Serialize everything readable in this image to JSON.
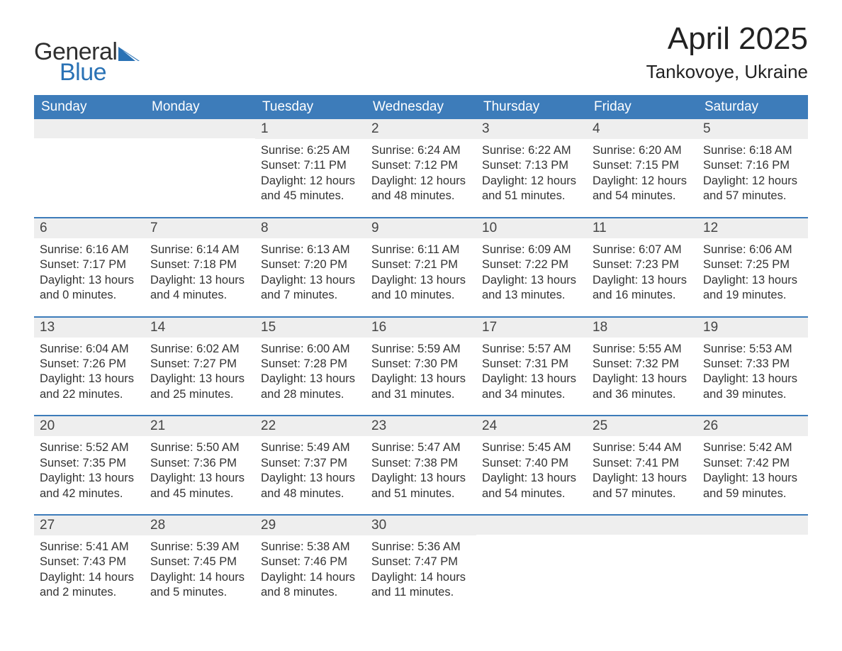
{
  "brand": {
    "text_general": "General",
    "text_blue": "Blue",
    "logo_fill": "#2a72b5"
  },
  "title": {
    "month": "April 2025",
    "location": "Tankovoye, Ukraine"
  },
  "colors": {
    "header_bg": "#3d7cba",
    "header_text": "#ffffff",
    "daynum_bg": "#eeeeee",
    "body_text": "#333333",
    "page_bg": "#ffffff",
    "rule": "#3d7cba"
  },
  "weekdays": [
    "Sunday",
    "Monday",
    "Tuesday",
    "Wednesday",
    "Thursday",
    "Friday",
    "Saturday"
  ],
  "weeks": [
    [
      null,
      null,
      {
        "n": "1",
        "sunrise": "Sunrise: 6:25 AM",
        "sunset": "Sunset: 7:11 PM",
        "daylight": "Daylight: 12 hours and 45 minutes."
      },
      {
        "n": "2",
        "sunrise": "Sunrise: 6:24 AM",
        "sunset": "Sunset: 7:12 PM",
        "daylight": "Daylight: 12 hours and 48 minutes."
      },
      {
        "n": "3",
        "sunrise": "Sunrise: 6:22 AM",
        "sunset": "Sunset: 7:13 PM",
        "daylight": "Daylight: 12 hours and 51 minutes."
      },
      {
        "n": "4",
        "sunrise": "Sunrise: 6:20 AM",
        "sunset": "Sunset: 7:15 PM",
        "daylight": "Daylight: 12 hours and 54 minutes."
      },
      {
        "n": "5",
        "sunrise": "Sunrise: 6:18 AM",
        "sunset": "Sunset: 7:16 PM",
        "daylight": "Daylight: 12 hours and 57 minutes."
      }
    ],
    [
      {
        "n": "6",
        "sunrise": "Sunrise: 6:16 AM",
        "sunset": "Sunset: 7:17 PM",
        "daylight": "Daylight: 13 hours and 0 minutes."
      },
      {
        "n": "7",
        "sunrise": "Sunrise: 6:14 AM",
        "sunset": "Sunset: 7:18 PM",
        "daylight": "Daylight: 13 hours and 4 minutes."
      },
      {
        "n": "8",
        "sunrise": "Sunrise: 6:13 AM",
        "sunset": "Sunset: 7:20 PM",
        "daylight": "Daylight: 13 hours and 7 minutes."
      },
      {
        "n": "9",
        "sunrise": "Sunrise: 6:11 AM",
        "sunset": "Sunset: 7:21 PM",
        "daylight": "Daylight: 13 hours and 10 minutes."
      },
      {
        "n": "10",
        "sunrise": "Sunrise: 6:09 AM",
        "sunset": "Sunset: 7:22 PM",
        "daylight": "Daylight: 13 hours and 13 minutes."
      },
      {
        "n": "11",
        "sunrise": "Sunrise: 6:07 AM",
        "sunset": "Sunset: 7:23 PM",
        "daylight": "Daylight: 13 hours and 16 minutes."
      },
      {
        "n": "12",
        "sunrise": "Sunrise: 6:06 AM",
        "sunset": "Sunset: 7:25 PM",
        "daylight": "Daylight: 13 hours and 19 minutes."
      }
    ],
    [
      {
        "n": "13",
        "sunrise": "Sunrise: 6:04 AM",
        "sunset": "Sunset: 7:26 PM",
        "daylight": "Daylight: 13 hours and 22 minutes."
      },
      {
        "n": "14",
        "sunrise": "Sunrise: 6:02 AM",
        "sunset": "Sunset: 7:27 PM",
        "daylight": "Daylight: 13 hours and 25 minutes."
      },
      {
        "n": "15",
        "sunrise": "Sunrise: 6:00 AM",
        "sunset": "Sunset: 7:28 PM",
        "daylight": "Daylight: 13 hours and 28 minutes."
      },
      {
        "n": "16",
        "sunrise": "Sunrise: 5:59 AM",
        "sunset": "Sunset: 7:30 PM",
        "daylight": "Daylight: 13 hours and 31 minutes."
      },
      {
        "n": "17",
        "sunrise": "Sunrise: 5:57 AM",
        "sunset": "Sunset: 7:31 PM",
        "daylight": "Daylight: 13 hours and 34 minutes."
      },
      {
        "n": "18",
        "sunrise": "Sunrise: 5:55 AM",
        "sunset": "Sunset: 7:32 PM",
        "daylight": "Daylight: 13 hours and 36 minutes."
      },
      {
        "n": "19",
        "sunrise": "Sunrise: 5:53 AM",
        "sunset": "Sunset: 7:33 PM",
        "daylight": "Daylight: 13 hours and 39 minutes."
      }
    ],
    [
      {
        "n": "20",
        "sunrise": "Sunrise: 5:52 AM",
        "sunset": "Sunset: 7:35 PM",
        "daylight": "Daylight: 13 hours and 42 minutes."
      },
      {
        "n": "21",
        "sunrise": "Sunrise: 5:50 AM",
        "sunset": "Sunset: 7:36 PM",
        "daylight": "Daylight: 13 hours and 45 minutes."
      },
      {
        "n": "22",
        "sunrise": "Sunrise: 5:49 AM",
        "sunset": "Sunset: 7:37 PM",
        "daylight": "Daylight: 13 hours and 48 minutes."
      },
      {
        "n": "23",
        "sunrise": "Sunrise: 5:47 AM",
        "sunset": "Sunset: 7:38 PM",
        "daylight": "Daylight: 13 hours and 51 minutes."
      },
      {
        "n": "24",
        "sunrise": "Sunrise: 5:45 AM",
        "sunset": "Sunset: 7:40 PM",
        "daylight": "Daylight: 13 hours and 54 minutes."
      },
      {
        "n": "25",
        "sunrise": "Sunrise: 5:44 AM",
        "sunset": "Sunset: 7:41 PM",
        "daylight": "Daylight: 13 hours and 57 minutes."
      },
      {
        "n": "26",
        "sunrise": "Sunrise: 5:42 AM",
        "sunset": "Sunset: 7:42 PM",
        "daylight": "Daylight: 13 hours and 59 minutes."
      }
    ],
    [
      {
        "n": "27",
        "sunrise": "Sunrise: 5:41 AM",
        "sunset": "Sunset: 7:43 PM",
        "daylight": "Daylight: 14 hours and 2 minutes."
      },
      {
        "n": "28",
        "sunrise": "Sunrise: 5:39 AM",
        "sunset": "Sunset: 7:45 PM",
        "daylight": "Daylight: 14 hours and 5 minutes."
      },
      {
        "n": "29",
        "sunrise": "Sunrise: 5:38 AM",
        "sunset": "Sunset: 7:46 PM",
        "daylight": "Daylight: 14 hours and 8 minutes."
      },
      {
        "n": "30",
        "sunrise": "Sunrise: 5:36 AM",
        "sunset": "Sunset: 7:47 PM",
        "daylight": "Daylight: 14 hours and 11 minutes."
      },
      null,
      null,
      null
    ]
  ]
}
